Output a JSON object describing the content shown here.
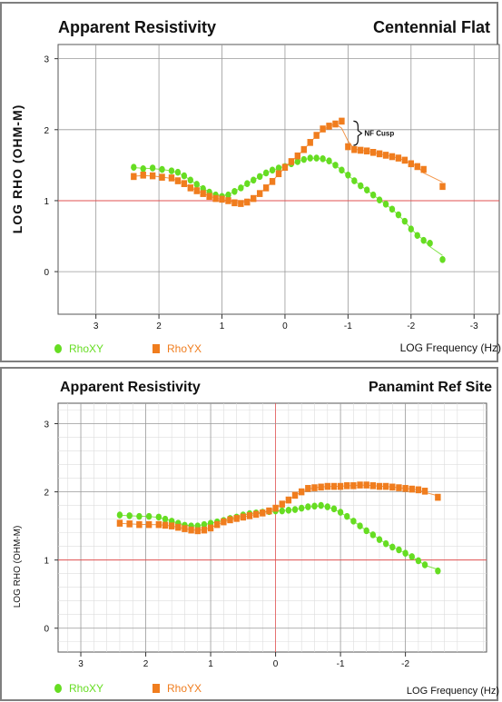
{
  "chart_data": [
    {
      "type": "scatter",
      "title": "Apparent Resistivity",
      "site": "Centennial Flat",
      "xlabel": "LOG Frequency (Hz)",
      "ylabel": "LOG RHO (OHM-M)",
      "x_tick_labels": [
        "3",
        "2",
        "1",
        "0",
        "-1",
        "-2",
        "-3"
      ],
      "y_tick_labels": [
        "0",
        "1",
        "2",
        "3"
      ],
      "xlim": [
        3.6,
        -3.4
      ],
      "ylim": [
        -0.6,
        3.2
      ],
      "grid": true,
      "reference_line_y": 1,
      "annotation": "NF Cusp",
      "legend": [
        {
          "name": "RhoXY",
          "color": "#66dd22",
          "marker": "circle"
        },
        {
          "name": "RhoYX",
          "color": "#f07d1e",
          "marker": "square"
        }
      ],
      "series": [
        {
          "name": "RhoXY",
          "color": "#66dd22",
          "x": [
            2.4,
            2.25,
            2.1,
            1.95,
            1.8,
            1.7,
            1.6,
            1.5,
            1.4,
            1.3,
            1.2,
            1.1,
            1.0,
            0.9,
            0.8,
            0.7,
            0.6,
            0.5,
            0.4,
            0.3,
            0.2,
            0.1,
            0.0,
            -0.1,
            -0.2,
            -0.3,
            -0.4,
            -0.5,
            -0.6,
            -0.7,
            -0.8,
            -0.9,
            -1.0,
            -1.1,
            -1.2,
            -1.3,
            -1.4,
            -1.5,
            -1.6,
            -1.7,
            -1.8,
            -1.9,
            -2.0,
            -2.1,
            -2.2,
            -2.3,
            -2.5
          ],
          "y": [
            1.47,
            1.45,
            1.46,
            1.44,
            1.42,
            1.4,
            1.35,
            1.29,
            1.23,
            1.17,
            1.12,
            1.08,
            1.06,
            1.08,
            1.13,
            1.18,
            1.24,
            1.29,
            1.34,
            1.39,
            1.43,
            1.46,
            1.48,
            1.52,
            1.55,
            1.58,
            1.6,
            1.6,
            1.59,
            1.56,
            1.5,
            1.43,
            1.36,
            1.28,
            1.21,
            1.15,
            1.08,
            1.01,
            0.95,
            0.88,
            0.8,
            0.71,
            0.6,
            0.51,
            0.44,
            0.4,
            0.17
          ]
        },
        {
          "name": "RhoYX",
          "color": "#f07d1e",
          "x": [
            2.4,
            2.25,
            2.1,
            1.95,
            1.8,
            1.7,
            1.6,
            1.5,
            1.4,
            1.3,
            1.2,
            1.1,
            1.0,
            0.9,
            0.8,
            0.7,
            0.6,
            0.5,
            0.4,
            0.3,
            0.2,
            0.1,
            0.0,
            -0.1,
            -0.2,
            -0.3,
            -0.4,
            -0.5,
            -0.6,
            -0.7,
            -0.8,
            -0.9,
            -1.0,
            -1.1,
            -1.2,
            -1.3,
            -1.4,
            -1.5,
            -1.6,
            -1.7,
            -1.8,
            -1.9,
            -2.0,
            -2.1,
            -2.2,
            -2.5
          ],
          "y": [
            1.34,
            1.36,
            1.35,
            1.33,
            1.32,
            1.28,
            1.24,
            1.18,
            1.14,
            1.1,
            1.06,
            1.03,
            1.02,
            1.0,
            0.97,
            0.96,
            0.98,
            1.03,
            1.1,
            1.18,
            1.27,
            1.38,
            1.47,
            1.55,
            1.63,
            1.72,
            1.82,
            1.92,
            2.01,
            2.05,
            2.08,
            2.12,
            1.76,
            1.72,
            1.71,
            1.7,
            1.68,
            1.66,
            1.64,
            1.62,
            1.6,
            1.57,
            1.52,
            1.48,
            1.44,
            1.2
          ]
        }
      ]
    },
    {
      "type": "scatter",
      "title": "Apparent Resistivity",
      "site": "Panamint Ref Site",
      "xlabel": "LOG Frequency (Hz)",
      "ylabel": "LOG RHO (OHM-M)",
      "x_tick_labels": [
        "3",
        "2",
        "1",
        "0",
        "-1",
        "-2"
      ],
      "y_tick_labels": [
        "0",
        "1",
        "2",
        "3"
      ],
      "xlim": [
        3.35,
        -3.25
      ],
      "ylim": [
        -0.35,
        3.3
      ],
      "grid": true,
      "reference_line_y": 1,
      "reference_line_x": 0,
      "legend": [
        {
          "name": "RhoXY",
          "color": "#66dd22",
          "marker": "circle"
        },
        {
          "name": "RhoYX",
          "color": "#f07d1e",
          "marker": "square"
        }
      ],
      "series": [
        {
          "name": "RhoXY",
          "color": "#66dd22",
          "x": [
            2.4,
            2.25,
            2.1,
            1.95,
            1.8,
            1.7,
            1.6,
            1.5,
            1.4,
            1.3,
            1.2,
            1.1,
            1.0,
            0.9,
            0.8,
            0.7,
            0.6,
            0.5,
            0.4,
            0.3,
            0.2,
            0.1,
            0.0,
            -0.1,
            -0.2,
            -0.3,
            -0.4,
            -0.5,
            -0.6,
            -0.7,
            -0.8,
            -0.9,
            -1.0,
            -1.1,
            -1.2,
            -1.3,
            -1.4,
            -1.5,
            -1.6,
            -1.7,
            -1.8,
            -1.9,
            -2.0,
            -2.1,
            -2.2,
            -2.3,
            -2.5
          ],
          "y": [
            1.66,
            1.65,
            1.64,
            1.64,
            1.63,
            1.6,
            1.57,
            1.54,
            1.51,
            1.5,
            1.5,
            1.52,
            1.54,
            1.56,
            1.58,
            1.61,
            1.63,
            1.66,
            1.68,
            1.69,
            1.7,
            1.71,
            1.72,
            1.72,
            1.73,
            1.74,
            1.76,
            1.78,
            1.79,
            1.8,
            1.78,
            1.75,
            1.7,
            1.64,
            1.57,
            1.5,
            1.43,
            1.37,
            1.3,
            1.24,
            1.19,
            1.15,
            1.1,
            1.05,
            0.99,
            0.93,
            0.84
          ]
        },
        {
          "name": "RhoYX",
          "color": "#f07d1e",
          "x": [
            2.4,
            2.25,
            2.1,
            1.95,
            1.8,
            1.7,
            1.6,
            1.5,
            1.4,
            1.3,
            1.2,
            1.1,
            1.0,
            0.9,
            0.8,
            0.7,
            0.6,
            0.5,
            0.4,
            0.3,
            0.2,
            0.1,
            0.0,
            -0.1,
            -0.2,
            -0.3,
            -0.4,
            -0.5,
            -0.6,
            -0.7,
            -0.8,
            -0.9,
            -1.0,
            -1.1,
            -1.2,
            -1.3,
            -1.4,
            -1.5,
            -1.6,
            -1.7,
            -1.8,
            -1.9,
            -2.0,
            -2.1,
            -2.2,
            -2.3,
            -2.5
          ],
          "y": [
            1.54,
            1.53,
            1.52,
            1.52,
            1.52,
            1.51,
            1.5,
            1.48,
            1.46,
            1.44,
            1.43,
            1.44,
            1.47,
            1.52,
            1.56,
            1.59,
            1.61,
            1.63,
            1.65,
            1.67,
            1.69,
            1.72,
            1.76,
            1.82,
            1.88,
            1.95,
            2.0,
            2.05,
            2.06,
            2.07,
            2.08,
            2.08,
            2.08,
            2.09,
            2.09,
            2.1,
            2.1,
            2.09,
            2.08,
            2.08,
            2.07,
            2.06,
            2.05,
            2.04,
            2.03,
            2.01,
            1.92
          ]
        }
      ]
    }
  ]
}
